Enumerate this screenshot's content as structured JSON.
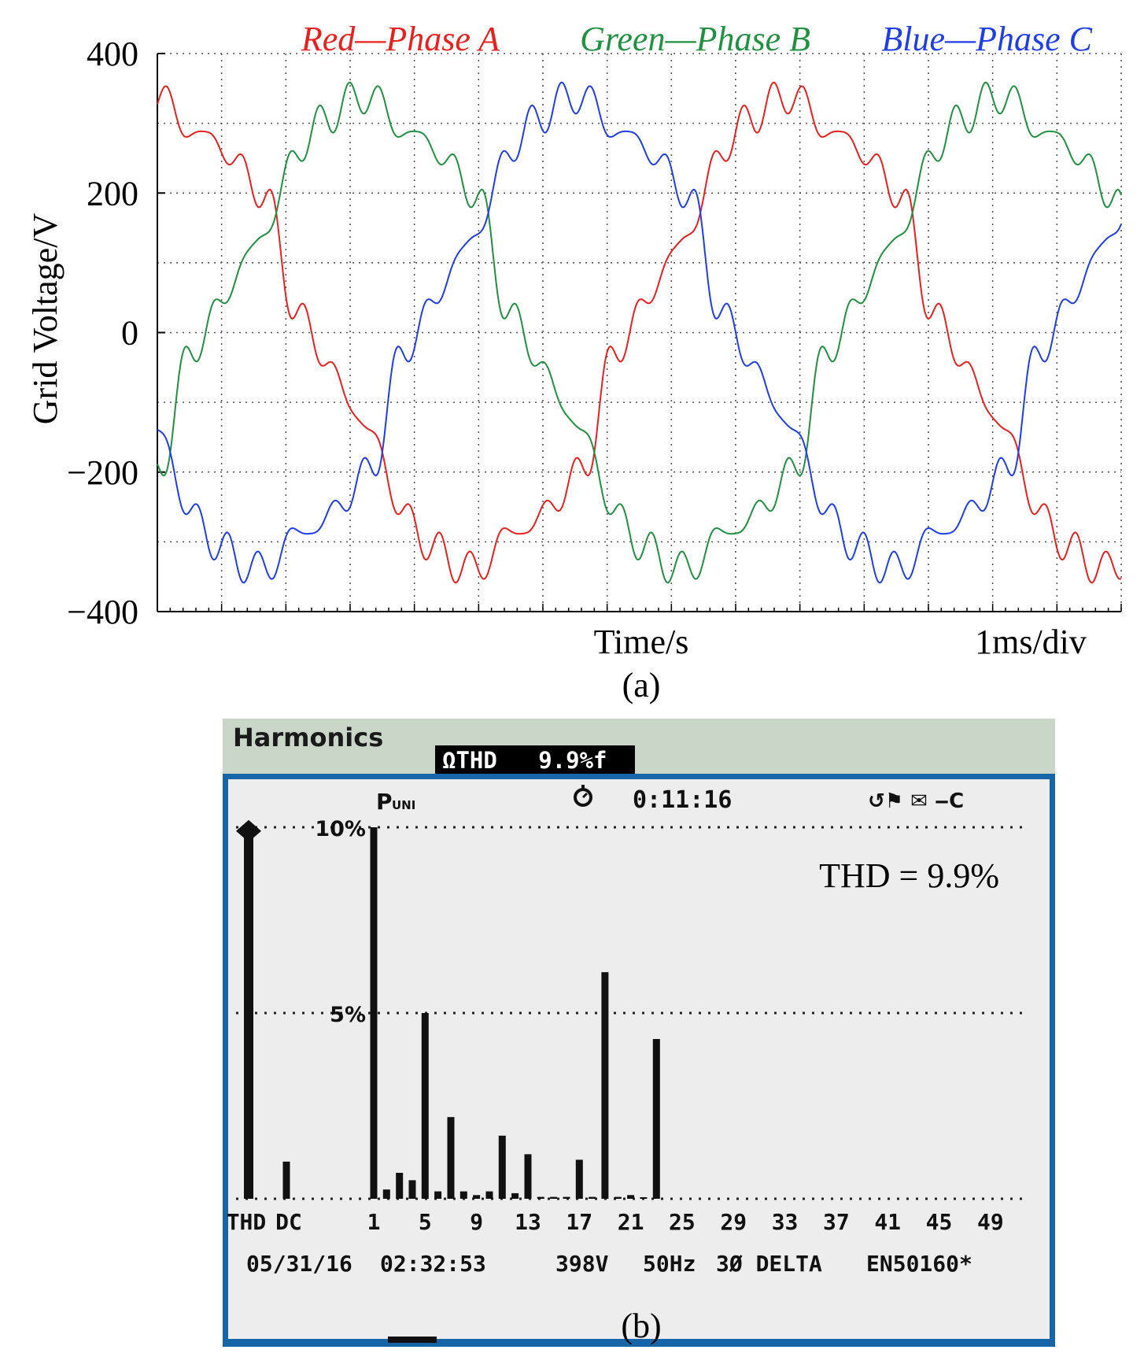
{
  "chart_data": [
    {
      "type": "line",
      "panel_label": "(a)",
      "legend": [
        {
          "label": "Red—Phase A",
          "color": "#e8201e"
        },
        {
          "label": "Green—Phase B",
          "color": "#1f9140"
        },
        {
          "label": "Blue—Phase C",
          "color": "#1f3ee8"
        }
      ],
      "ylabel": "Grid Voltage/V",
      "xlabel": "Time/s",
      "time_scale": "1ms/div",
      "ylim": [
        -400,
        400
      ],
      "yticks": [
        400,
        200,
        0,
        -200,
        -400
      ],
      "ytick_labels": [
        "400",
        "200",
        "0",
        "−200",
        "−400"
      ],
      "x_divisions": 15,
      "grid": true,
      "waveform": {
        "amplitude_v": 330,
        "offset_div": 0,
        "period_div": 9.9,
        "harmonics": [
          {
            "order": 5,
            "ratio": 0.055
          },
          {
            "order": 7,
            "ratio": 0.03
          },
          {
            "order": 11,
            "ratio": 0.025
          },
          {
            "order": 13,
            "ratio": 0.018
          },
          {
            "order": 17,
            "ratio": 0.012
          },
          {
            "order": 19,
            "ratio": 0.06
          },
          {
            "order": 23,
            "ratio": 0.04
          }
        ],
        "phase_shifts_deg": [
          0,
          -120,
          120
        ]
      }
    },
    {
      "type": "bar",
      "panel_label": "(b)",
      "header_title": "Harmonics",
      "header_thd": "ΩTHD   9.9%f",
      "status_mode": "P",
      "status_mode_sub": "UNI",
      "status_clock_icon": "stopwatch-icon",
      "status_time": "0:11:16",
      "status_icons": "↺⚑ ✉ ‒C",
      "annotation": "THD = 9.9%",
      "ylim": [
        0,
        10
      ],
      "yticks": [
        {
          "value": 10,
          "label": "10%"
        },
        {
          "value": 5,
          "label": "5%"
        }
      ],
      "x_tick_labels": [
        "THD",
        "DC",
        "1",
        "5",
        "9",
        "13",
        "17",
        "21",
        "25",
        "29",
        "33",
        "37",
        "41",
        "45",
        "49"
      ],
      "bars": [
        {
          "label": "THD",
          "value": 9.9
        },
        {
          "label": "DC",
          "value": 1.0
        },
        {
          "label": "1",
          "value": 10.0
        },
        {
          "label": "2",
          "value": 0.25
        },
        {
          "label": "3",
          "value": 0.7
        },
        {
          "label": "4",
          "value": 0.5
        },
        {
          "label": "5",
          "value": 5.0
        },
        {
          "label": "6",
          "value": 0.2
        },
        {
          "label": "7",
          "value": 2.2
        },
        {
          "label": "8",
          "value": 0.2
        },
        {
          "label": "9",
          "value": 0.1
        },
        {
          "label": "10",
          "value": 0.2
        },
        {
          "label": "11",
          "value": 1.7
        },
        {
          "label": "12",
          "value": 0.15
        },
        {
          "label": "13",
          "value": 1.2
        },
        {
          "label": "14",
          "value": 0.05
        },
        {
          "label": "15",
          "value": 0.05
        },
        {
          "label": "16",
          "value": 0.05
        },
        {
          "label": "17",
          "value": 1.05
        },
        {
          "label": "18",
          "value": 0.05
        },
        {
          "label": "19",
          "value": 6.1
        },
        {
          "label": "20",
          "value": 0.05
        },
        {
          "label": "21",
          "value": 0.1
        },
        {
          "label": "22",
          "value": 0.0
        },
        {
          "label": "23",
          "value": 4.3
        }
      ],
      "footer_date": "05/31/16",
      "footer_time": "02:32:53",
      "footer_voltage": "398V",
      "footer_freq": "50Hz",
      "footer_config": "3Ø DELTA",
      "footer_standard": "EN50160*"
    }
  ]
}
